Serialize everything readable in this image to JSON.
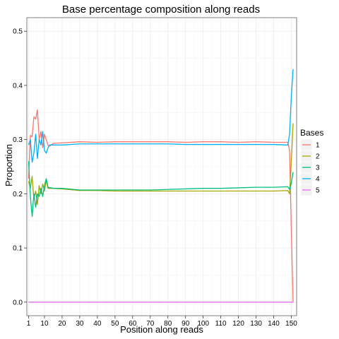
{
  "chart_data": {
    "type": "line",
    "title": "Base percentage composition along reads",
    "xlabel": "Position along reads",
    "ylabel": "Proportion",
    "xlim": [
      0,
      153
    ],
    "ylim": [
      -0.025,
      0.525
    ],
    "x_ticks": [
      1,
      10,
      20,
      30,
      40,
      50,
      60,
      70,
      80,
      90,
      100,
      110,
      120,
      130,
      140,
      150
    ],
    "y_ticks": [
      0.0,
      0.1,
      0.2,
      0.3,
      0.4,
      0.5
    ],
    "y_tick_labels": [
      "0.0",
      "0.1",
      "0.2",
      "0.3",
      "0.4",
      "0.5"
    ],
    "grid": true,
    "legend": {
      "title": "Bases",
      "position": "right"
    },
    "series": [
      {
        "name": "1",
        "color": "#F8766D",
        "points": [
          [
            1,
            0.228
          ],
          [
            2,
            0.308
          ],
          [
            3,
            0.305
          ],
          [
            4,
            0.342
          ],
          [
            5,
            0.338
          ],
          [
            6,
            0.355
          ],
          [
            7,
            0.3
          ],
          [
            8,
            0.315
          ],
          [
            9,
            0.285
          ],
          [
            10,
            0.31
          ],
          [
            11,
            0.3
          ],
          [
            12,
            0.29
          ],
          [
            13,
            0.288
          ],
          [
            15,
            0.293
          ],
          [
            20,
            0.294
          ],
          [
            30,
            0.296
          ],
          [
            40,
            0.295
          ],
          [
            50,
            0.296
          ],
          [
            60,
            0.296
          ],
          [
            70,
            0.296
          ],
          [
            80,
            0.296
          ],
          [
            90,
            0.295
          ],
          [
            100,
            0.296
          ],
          [
            110,
            0.296
          ],
          [
            120,
            0.295
          ],
          [
            130,
            0.296
          ],
          [
            140,
            0.295
          ],
          [
            148,
            0.295
          ],
          [
            149,
            0.28
          ],
          [
            150,
            0.13
          ],
          [
            151,
            0.0
          ]
        ]
      },
      {
        "name": "2",
        "color": "#A3A500",
        "points": [
          [
            1,
            0.223
          ],
          [
            2,
            0.21
          ],
          [
            3,
            0.232
          ],
          [
            4,
            0.19
          ],
          [
            5,
            0.205
          ],
          [
            6,
            0.18
          ],
          [
            7,
            0.215
          ],
          [
            8,
            0.2
          ],
          [
            9,
            0.218
          ],
          [
            10,
            0.205
          ],
          [
            11,
            0.225
          ],
          [
            12,
            0.21
          ],
          [
            15,
            0.21
          ],
          [
            20,
            0.209
          ],
          [
            30,
            0.206
          ],
          [
            40,
            0.206
          ],
          [
            50,
            0.205
          ],
          [
            60,
            0.205
          ],
          [
            70,
            0.205
          ],
          [
            80,
            0.205
          ],
          [
            90,
            0.205
          ],
          [
            100,
            0.205
          ],
          [
            110,
            0.205
          ],
          [
            120,
            0.205
          ],
          [
            130,
            0.205
          ],
          [
            140,
            0.205
          ],
          [
            148,
            0.206
          ],
          [
            149,
            0.2
          ],
          [
            150,
            0.26
          ],
          [
            151,
            0.33
          ]
        ]
      },
      {
        "name": "3",
        "color": "#00BF7D",
        "points": [
          [
            1,
            0.26
          ],
          [
            2,
            0.195
          ],
          [
            3,
            0.158
          ],
          [
            4,
            0.2
          ],
          [
            5,
            0.175
          ],
          [
            6,
            0.2
          ],
          [
            7,
            0.195
          ],
          [
            8,
            0.21
          ],
          [
            9,
            0.195
          ],
          [
            10,
            0.215
          ],
          [
            11,
            0.228
          ],
          [
            12,
            0.212
          ],
          [
            15,
            0.21
          ],
          [
            20,
            0.21
          ],
          [
            30,
            0.207
          ],
          [
            40,
            0.207
          ],
          [
            50,
            0.207
          ],
          [
            60,
            0.207
          ],
          [
            70,
            0.207
          ],
          [
            80,
            0.208
          ],
          [
            90,
            0.209
          ],
          [
            100,
            0.21
          ],
          [
            110,
            0.21
          ],
          [
            120,
            0.211
          ],
          [
            130,
            0.212
          ],
          [
            140,
            0.212
          ],
          [
            148,
            0.213
          ],
          [
            149,
            0.208
          ],
          [
            150,
            0.22
          ],
          [
            151,
            0.24
          ]
        ]
      },
      {
        "name": "4",
        "color": "#00B0F6",
        "points": [
          [
            1,
            0.29
          ],
          [
            2,
            0.3
          ],
          [
            3,
            0.258
          ],
          [
            4,
            0.275
          ],
          [
            5,
            0.31
          ],
          [
            6,
            0.265
          ],
          [
            7,
            0.3
          ],
          [
            8,
            0.29
          ],
          [
            9,
            0.315
          ],
          [
            10,
            0.28
          ],
          [
            11,
            0.275
          ],
          [
            12,
            0.285
          ],
          [
            13,
            0.29
          ],
          [
            15,
            0.29
          ],
          [
            20,
            0.29
          ],
          [
            30,
            0.292
          ],
          [
            40,
            0.292
          ],
          [
            50,
            0.292
          ],
          [
            60,
            0.292
          ],
          [
            70,
            0.292
          ],
          [
            80,
            0.292
          ],
          [
            90,
            0.291
          ],
          [
            100,
            0.291
          ],
          [
            110,
            0.291
          ],
          [
            120,
            0.291
          ],
          [
            130,
            0.291
          ],
          [
            140,
            0.291
          ],
          [
            148,
            0.29
          ],
          [
            149,
            0.31
          ],
          [
            150,
            0.38
          ],
          [
            151,
            0.43
          ]
        ]
      },
      {
        "name": "5",
        "color": "#E76BF3",
        "points": [
          [
            1,
            0.0
          ],
          [
            151,
            0.0
          ]
        ]
      }
    ]
  }
}
